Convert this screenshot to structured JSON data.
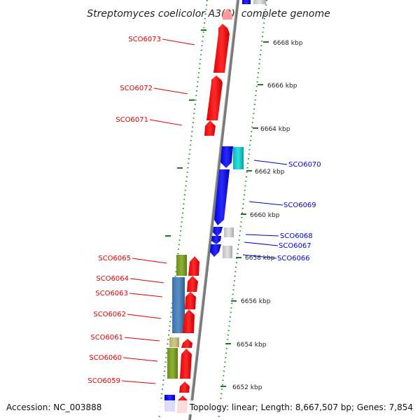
{
  "title": "Streptomyces coelicolor A3(2), complete genome",
  "footer": {
    "accession": "Accession: NC_003888",
    "summary": "Topology: linear; Length: 8,667,507 bp; Genes: 7,854"
  },
  "ruler_labels": [
    "6668 kbp",
    "6666 kbp",
    "6664 kbp",
    "6662 kbp",
    "6660 kbp",
    "6658 kbp",
    "6656 kbp",
    "6654 kbp",
    "6652 kbp"
  ],
  "left_genes": [
    "SCO6073",
    "SCO6072",
    "SCO6071",
    "SCO6065",
    "SCO6064",
    "SCO6063",
    "SCO6062",
    "SCO6061",
    "SCO6060",
    "SCO6059"
  ],
  "right_genes": [
    "SCO6070",
    "SCO6069",
    "SCO6068",
    "SCO6067",
    "SCO6066"
  ],
  "colors": {
    "forward_strand": "#ff0000",
    "reverse_strand": "#0000ff",
    "left_label": "#dd0000",
    "right_label": "#0000cc",
    "ruler_ticks": "#228822",
    "axis": "#888888"
  }
}
